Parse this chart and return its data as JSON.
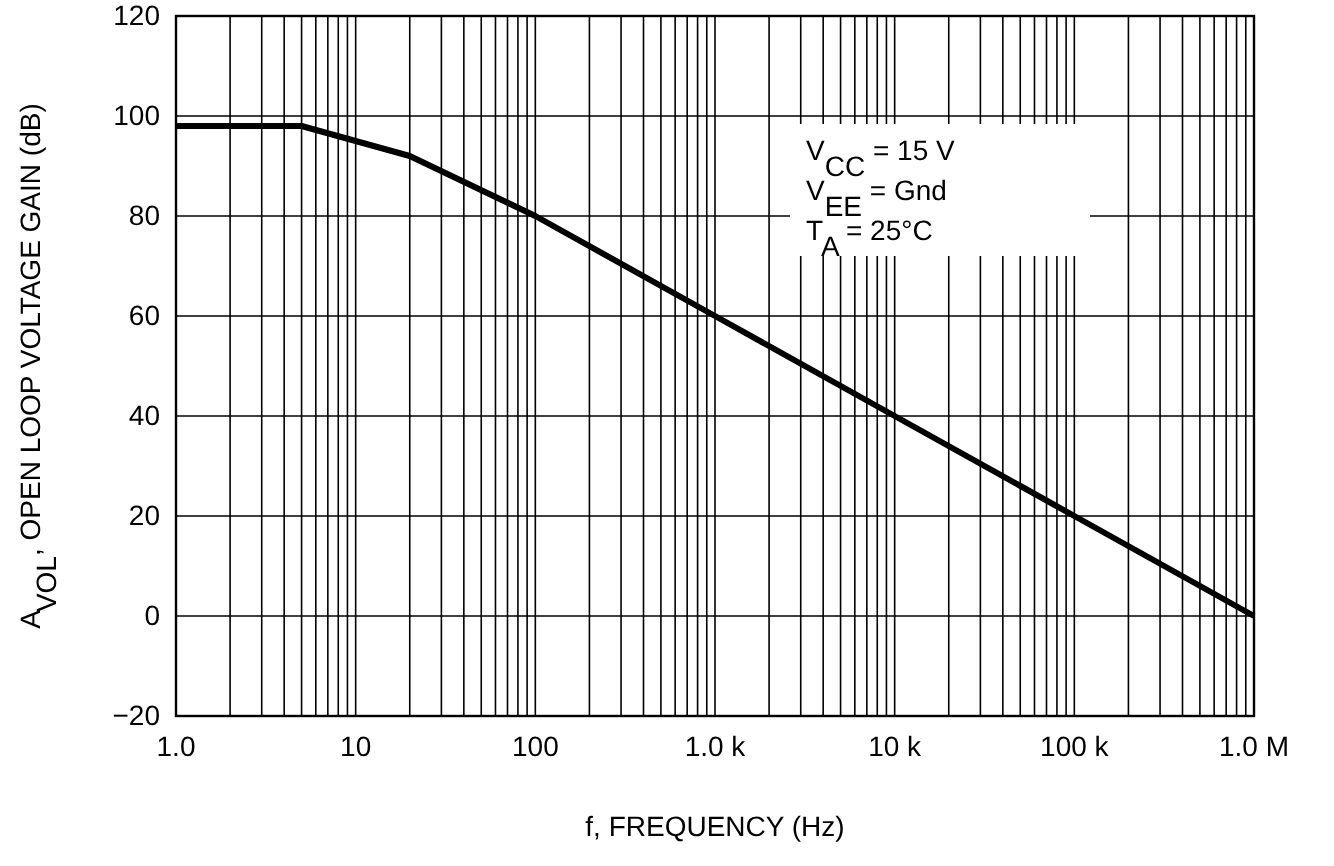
{
  "chart_data": {
    "type": "line",
    "xlabel": "f, FREQUENCY (Hz)",
    "ylabel": "A$_{VOL}$, OPEN LOOP VOLTAGE GAIN (dB)",
    "log": "x",
    "xlim": [
      1,
      1000000
    ],
    "ylim": [
      -20,
      120
    ],
    "xticks": [
      {
        "value": 1,
        "label": "1.0"
      },
      {
        "value": 2,
        "label": null
      },
      {
        "value": 3,
        "label": null
      },
      {
        "value": 4,
        "label": null
      },
      {
        "value": 5,
        "label": null
      },
      {
        "value": 6,
        "label": null
      },
      {
        "value": 7,
        "label": null
      },
      {
        "value": 8,
        "label": null
      },
      {
        "value": 9,
        "label": null
      },
      {
        "value": 10,
        "label": "10"
      },
      {
        "value": 20,
        "label": null
      },
      {
        "value": 30,
        "label": null
      },
      {
        "value": 40,
        "label": null
      },
      {
        "value": 50,
        "label": null
      },
      {
        "value": 60,
        "label": null
      },
      {
        "value": 70,
        "label": null
      },
      {
        "value": 80,
        "label": null
      },
      {
        "value": 90,
        "label": null
      },
      {
        "value": 100,
        "label": "100"
      },
      {
        "value": 200,
        "label": null
      },
      {
        "value": 300,
        "label": null
      },
      {
        "value": 400,
        "label": null
      },
      {
        "value": 500,
        "label": null
      },
      {
        "value": 600,
        "label": null
      },
      {
        "value": 700,
        "label": null
      },
      {
        "value": 800,
        "label": null
      },
      {
        "value": 900,
        "label": null
      },
      {
        "value": 1000,
        "label": "1.0 k"
      },
      {
        "value": 2000,
        "label": null
      },
      {
        "value": 3000,
        "label": null
      },
      {
        "value": 4000,
        "label": null
      },
      {
        "value": 5000,
        "label": null
      },
      {
        "value": 6000,
        "label": null
      },
      {
        "value": 7000,
        "label": null
      },
      {
        "value": 8000,
        "label": null
      },
      {
        "value": 9000,
        "label": null
      },
      {
        "value": 10000,
        "label": "10 k"
      },
      {
        "value": 20000,
        "label": null
      },
      {
        "value": 30000,
        "label": null
      },
      {
        "value": 40000,
        "label": null
      },
      {
        "value": 50000,
        "label": null
      },
      {
        "value": 60000,
        "label": null
      },
      {
        "value": 70000,
        "label": null
      },
      {
        "value": 80000,
        "label": null
      },
      {
        "value": 90000,
        "label": null
      },
      {
        "value": 100000,
        "label": "100 k"
      },
      {
        "value": 200000,
        "label": null
      },
      {
        "value": 300000,
        "label": null
      },
      {
        "value": 400000,
        "label": null
      },
      {
        "value": 500000,
        "label": null
      },
      {
        "value": 600000,
        "label": null
      },
      {
        "value": 700000,
        "label": null
      },
      {
        "value": 800000,
        "label": null
      },
      {
        "value": 900000,
        "label": null
      },
      {
        "value": 1000000,
        "label": "1.0 M"
      }
    ],
    "yticks": [
      {
        "value": -20,
        "label": "−20"
      },
      0,
      20,
      40,
      60,
      80,
      100,
      120
    ],
    "grid": true,
    "marker": "none",
    "line_style": "solid",
    "annotations": [
      "V$_{CC}$ = 15 V",
      "V$_{EE}$ = Gnd",
      "T$_{A}$ = 25°C"
    ],
    "series": [
      {
        "color": "#000000",
        "x": [
          1,
          5,
          20,
          100,
          1000,
          10000,
          100000,
          1000000
        ],
        "values": [
          98,
          98,
          92,
          80,
          60,
          40,
          20,
          0
        ]
      }
    ]
  }
}
